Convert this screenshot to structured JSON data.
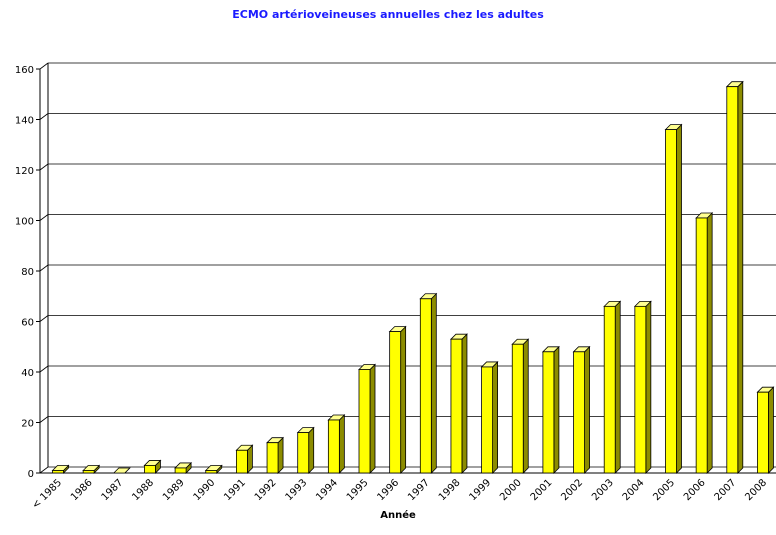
{
  "chart_data": {
    "type": "bar3d",
    "title": "ECMO artérioveineuses annuelles chez les adultes",
    "x_label": "Année",
    "categories": [
      "< 1985",
      "1986",
      "1987",
      "1988",
      "1989",
      "1990",
      "1991",
      "1992",
      "1993",
      "1994",
      "1995",
      "1996",
      "1997",
      "1998",
      "1999",
      "2000",
      "2001",
      "2002",
      "2003",
      "2004",
      "2005",
      "2006",
      "2007",
      "2008"
    ],
    "values": [
      1,
      1,
      0,
      3,
      2,
      1,
      9,
      12,
      16,
      21,
      41,
      56,
      69,
      53,
      42,
      51,
      48,
      48,
      66,
      66,
      136,
      101,
      153,
      32
    ],
    "color": "#ffff00",
    "ylim": [
      0,
      160
    ],
    "yticks": [
      0,
      20,
      40,
      60,
      80,
      100,
      120,
      140,
      160
    ],
    "grid": true
  }
}
